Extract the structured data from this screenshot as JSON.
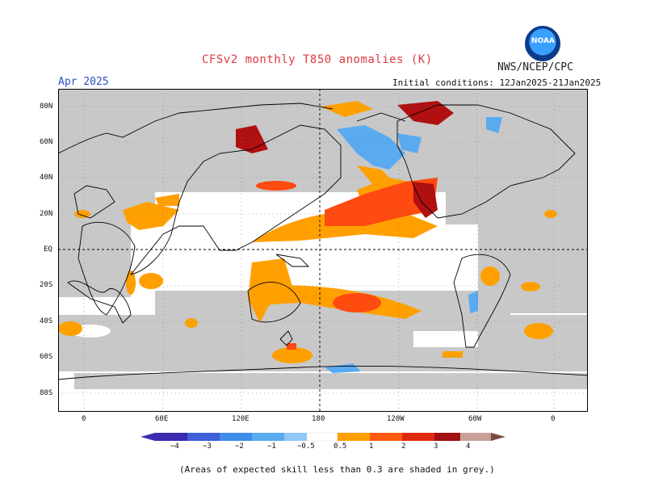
{
  "header": {
    "title": "CFSv2 monthly T850 anomalies (K)",
    "org": "NWS/NCEP/CPC",
    "logo_text": "NOAA",
    "month": "Apr 2025",
    "initial_conditions": "Initial conditions: 12Jan2025-21Jan2025"
  },
  "map": {
    "lat_labels": [
      "80N",
      "60N",
      "40N",
      "20N",
      "EQ",
      "20S",
      "40S",
      "60S",
      "80S"
    ],
    "lon_labels": [
      "0",
      "60E",
      "120E",
      "180",
      "120W",
      "60W",
      "0"
    ],
    "skill_mask_color": "#c8c8c8",
    "land_outline_color": "#000000"
  },
  "colorbar": {
    "labels": [
      "−4",
      "−3",
      "−2",
      "−1",
      "−0.5",
      "0.5",
      "1",
      "2",
      "3",
      "4"
    ],
    "colors": [
      "#3a2bb0",
      "#3e5fd8",
      "#3e8ce8",
      "#5aaaf0",
      "#8fc8f8",
      "#ffffff",
      "#ffa000",
      "#ff5a10",
      "#e02a10",
      "#a01010",
      "#c8a098",
      "#7a4a40"
    ]
  },
  "footnote": "(Areas of expected skill less than 0.3 are shaded in grey.)"
}
